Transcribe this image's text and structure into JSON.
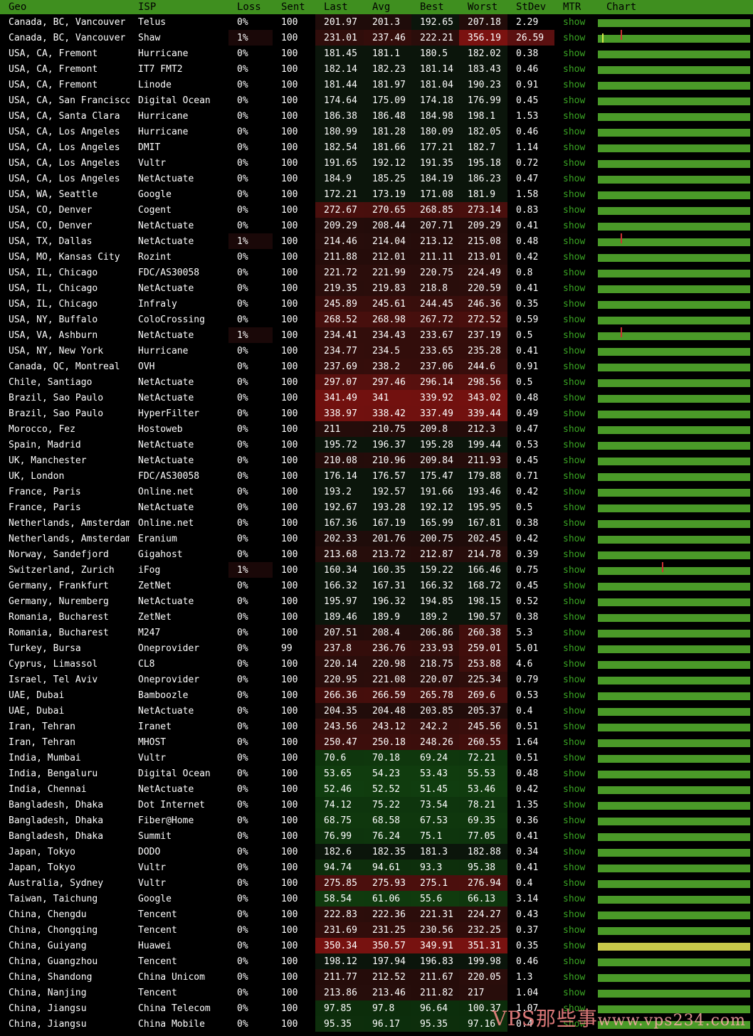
{
  "headers": [
    "Geo",
    "ISP",
    "Loss",
    "Sent",
    "Last",
    "Avg",
    "Best",
    "Worst",
    "StDev",
    "MTR",
    "Chart"
  ],
  "mtr_label": "show",
  "watermark": {
    "main": "VPS那些事",
    "sub": "www.vps234.com"
  },
  "rows": [
    [
      "Canada, BC, Vancouver",
      "Telus",
      "0%",
      "100",
      "201.97",
      "201.3",
      "192.65",
      "207.18",
      "2.29"
    ],
    [
      "Canada, BC, Vancouver",
      "Shaw",
      "1%",
      "100",
      "231.01",
      "237.46",
      "222.21",
      "356.19",
      "26.59"
    ],
    [
      "USA, CA, Fremont",
      "Hurricane",
      "0%",
      "100",
      "181.45",
      "181.1",
      "180.5",
      "182.02",
      "0.38"
    ],
    [
      "USA, CA, Fremont",
      "IT7 FMT2",
      "0%",
      "100",
      "182.14",
      "182.23",
      "181.14",
      "183.43",
      "0.46"
    ],
    [
      "USA, CA, Fremont",
      "Linode",
      "0%",
      "100",
      "181.44",
      "181.97",
      "181.04",
      "190.23",
      "0.91"
    ],
    [
      "USA, CA, San Francisco",
      "Digital Ocean",
      "0%",
      "100",
      "174.64",
      "175.09",
      "174.18",
      "176.99",
      "0.45"
    ],
    [
      "USA, CA, Santa Clara",
      "Hurricane",
      "0%",
      "100",
      "186.38",
      "186.48",
      "184.98",
      "198.1",
      "1.53"
    ],
    [
      "USA, CA, Los Angeles",
      "Hurricane",
      "0%",
      "100",
      "180.99",
      "181.28",
      "180.09",
      "182.05",
      "0.46"
    ],
    [
      "USA, CA, Los Angeles",
      "DMIT",
      "0%",
      "100",
      "182.54",
      "181.66",
      "177.21",
      "182.7",
      "1.14"
    ],
    [
      "USA, CA, Los Angeles",
      "Vultr",
      "0%",
      "100",
      "191.65",
      "192.12",
      "191.35",
      "195.18",
      "0.72"
    ],
    [
      "USA, CA, Los Angeles",
      "NetActuate",
      "0%",
      "100",
      "184.9",
      "185.25",
      "184.19",
      "186.23",
      "0.47"
    ],
    [
      "USA, WA, Seattle",
      "Google",
      "0%",
      "100",
      "172.21",
      "173.19",
      "171.08",
      "181.9",
      "1.58"
    ],
    [
      "USA, CO, Denver",
      "Cogent",
      "0%",
      "100",
      "272.67",
      "270.65",
      "268.85",
      "273.14",
      "0.83"
    ],
    [
      "USA, CO, Denver",
      "NetActuate",
      "0%",
      "100",
      "209.29",
      "208.44",
      "207.71",
      "209.29",
      "0.41"
    ],
    [
      "USA, TX, Dallas",
      "NetActuate",
      "1%",
      "100",
      "214.46",
      "214.04",
      "213.12",
      "215.08",
      "0.48"
    ],
    [
      "USA, MO, Kansas City",
      "Rozint",
      "0%",
      "100",
      "211.88",
      "212.01",
      "211.11",
      "213.01",
      "0.42"
    ],
    [
      "USA, IL, Chicago",
      "FDC/AS30058",
      "0%",
      "100",
      "221.72",
      "221.99",
      "220.75",
      "224.49",
      "0.8"
    ],
    [
      "USA, IL, Chicago",
      "NetActuate",
      "0%",
      "100",
      "219.35",
      "219.83",
      "218.8",
      "220.59",
      "0.41"
    ],
    [
      "USA, IL, Chicago",
      "Infraly",
      "0%",
      "100",
      "245.89",
      "245.61",
      "244.45",
      "246.36",
      "0.35"
    ],
    [
      "USA, NY, Buffalo",
      "ColoCrossing",
      "0%",
      "100",
      "268.52",
      "268.98",
      "267.72",
      "272.52",
      "0.59"
    ],
    [
      "USA, VA, Ashburn",
      "NetActuate",
      "1%",
      "100",
      "234.41",
      "234.43",
      "233.67",
      "237.19",
      "0.5"
    ],
    [
      "USA, NY, New York",
      "Hurricane",
      "0%",
      "100",
      "234.77",
      "234.5",
      "233.65",
      "235.28",
      "0.41"
    ],
    [
      "Canada, QC, Montreal",
      "OVH",
      "0%",
      "100",
      "237.69",
      "238.2",
      "237.06",
      "244.6",
      "0.91"
    ],
    [
      "Chile, Santiago",
      "NetActuate",
      "0%",
      "100",
      "297.07",
      "297.46",
      "296.14",
      "298.56",
      "0.5"
    ],
    [
      "Brazil, Sao Paulo",
      "NetActuate",
      "0%",
      "100",
      "341.49",
      "341",
      "339.92",
      "343.02",
      "0.48"
    ],
    [
      "Brazil, Sao Paulo",
      "HyperFilter",
      "0%",
      "100",
      "338.97",
      "338.42",
      "337.49",
      "339.44",
      "0.49"
    ],
    [
      "Morocco, Fez",
      "Hostoweb",
      "0%",
      "100",
      "211",
      "210.75",
      "209.8",
      "212.3",
      "0.47"
    ],
    [
      "Spain, Madrid",
      "NetActuate",
      "0%",
      "100",
      "195.72",
      "196.37",
      "195.28",
      "199.44",
      "0.53"
    ],
    [
      "UK, Manchester",
      "NetActuate",
      "0%",
      "100",
      "210.08",
      "210.96",
      "209.84",
      "211.93",
      "0.45"
    ],
    [
      "UK, London",
      "FDC/AS30058",
      "0%",
      "100",
      "176.14",
      "176.57",
      "175.47",
      "179.88",
      "0.71"
    ],
    [
      "France, Paris",
      "Online.net",
      "0%",
      "100",
      "193.2",
      "192.57",
      "191.66",
      "193.46",
      "0.42"
    ],
    [
      "France, Paris",
      "NetActuate",
      "0%",
      "100",
      "192.67",
      "193.28",
      "192.12",
      "195.95",
      "0.5"
    ],
    [
      "Netherlands, Amsterdam",
      "Online.net",
      "0%",
      "100",
      "167.36",
      "167.19",
      "165.99",
      "167.81",
      "0.38"
    ],
    [
      "Netherlands, Amsterdam",
      "Eranium",
      "0%",
      "100",
      "202.33",
      "201.76",
      "200.75",
      "202.45",
      "0.42"
    ],
    [
      "Norway, Sandefjord",
      "Gigahost",
      "0%",
      "100",
      "213.68",
      "213.72",
      "212.87",
      "214.78",
      "0.39"
    ],
    [
      "Switzerland, Zurich",
      "iFog",
      "1%",
      "100",
      "160.34",
      "160.35",
      "159.22",
      "166.46",
      "0.75"
    ],
    [
      "Germany, Frankfurt",
      "ZetNet",
      "0%",
      "100",
      "166.32",
      "167.31",
      "166.32",
      "168.72",
      "0.45"
    ],
    [
      "Germany, Nuremberg",
      "NetActuate",
      "0%",
      "100",
      "195.97",
      "196.32",
      "194.85",
      "198.15",
      "0.52"
    ],
    [
      "Romania, Bucharest",
      "ZetNet",
      "0%",
      "100",
      "189.46",
      "189.9",
      "189.2",
      "190.57",
      "0.38"
    ],
    [
      "Romania, Bucharest",
      "M247",
      "0%",
      "100",
      "207.51",
      "208.4",
      "206.86",
      "260.38",
      "5.3"
    ],
    [
      "Turkey, Bursa",
      "Oneprovider",
      "0%",
      "99",
      "237.8",
      "236.76",
      "233.93",
      "259.01",
      "5.01"
    ],
    [
      "Cyprus, Limassol",
      "CL8",
      "0%",
      "100",
      "220.14",
      "220.98",
      "218.75",
      "253.88",
      "4.6"
    ],
    [
      "Israel, Tel Aviv",
      "Oneprovider",
      "0%",
      "100",
      "220.95",
      "221.08",
      "220.07",
      "225.34",
      "0.79"
    ],
    [
      "UAE, Dubai",
      "Bamboozle",
      "0%",
      "100",
      "266.36",
      "266.59",
      "265.78",
      "269.6",
      "0.53"
    ],
    [
      "UAE, Dubai",
      "NetActuate",
      "0%",
      "100",
      "204.35",
      "204.48",
      "203.85",
      "205.37",
      "0.4"
    ],
    [
      "Iran, Tehran",
      "Iranet",
      "0%",
      "100",
      "243.56",
      "243.12",
      "242.2",
      "245.56",
      "0.51"
    ],
    [
      "Iran, Tehran",
      "MHOST",
      "0%",
      "100",
      "250.47",
      "250.18",
      "248.26",
      "260.55",
      "1.64"
    ],
    [
      "India, Mumbai",
      "Vultr",
      "0%",
      "100",
      "70.6",
      "70.18",
      "69.24",
      "72.21",
      "0.51"
    ],
    [
      "India, Bengaluru",
      "Digital Ocean",
      "0%",
      "100",
      "53.65",
      "54.23",
      "53.43",
      "55.53",
      "0.48"
    ],
    [
      "India, Chennai",
      "NetActuate",
      "0%",
      "100",
      "52.46",
      "52.52",
      "51.45",
      "53.46",
      "0.42"
    ],
    [
      "Bangladesh, Dhaka",
      "Dot Internet",
      "0%",
      "100",
      "74.12",
      "75.22",
      "73.54",
      "78.21",
      "1.35"
    ],
    [
      "Bangladesh, Dhaka",
      "Fiber@Home",
      "0%",
      "100",
      "68.75",
      "68.58",
      "67.53",
      "69.35",
      "0.36"
    ],
    [
      "Bangladesh, Dhaka",
      "Summit",
      "0%",
      "100",
      "76.99",
      "76.24",
      "75.1",
      "77.05",
      "0.41"
    ],
    [
      "Japan, Tokyo",
      "DODO",
      "0%",
      "100",
      "182.6",
      "182.35",
      "181.3",
      "182.88",
      "0.34"
    ],
    [
      "Japan, Tokyo",
      "Vultr",
      "0%",
      "100",
      "94.74",
      "94.61",
      "93.3",
      "95.38",
      "0.41"
    ],
    [
      "Australia, Sydney",
      "Vultr",
      "0%",
      "100",
      "275.85",
      "275.93",
      "275.1",
      "276.94",
      "0.4"
    ],
    [
      "Taiwan, Taichung",
      "Google",
      "0%",
      "100",
      "58.54",
      "61.06",
      "55.6",
      "66.13",
      "3.14"
    ],
    [
      "China, Chengdu",
      "Tencent",
      "0%",
      "100",
      "222.83",
      "222.36",
      "221.31",
      "224.27",
      "0.43"
    ],
    [
      "China, Chongqing",
      "Tencent",
      "0%",
      "100",
      "231.69",
      "231.25",
      "230.56",
      "232.25",
      "0.37"
    ],
    [
      "China, Guiyang",
      "Huawei",
      "0%",
      "100",
      "350.34",
      "350.57",
      "349.91",
      "351.31",
      "0.35"
    ],
    [
      "China, Guangzhou",
      "Tencent",
      "0%",
      "100",
      "198.12",
      "197.94",
      "196.83",
      "199.98",
      "0.46"
    ],
    [
      "China, Shandong",
      "China Unicom",
      "0%",
      "100",
      "211.77",
      "212.52",
      "211.67",
      "220.05",
      "1.3"
    ],
    [
      "China, Nanjing",
      "Tencent",
      "0%",
      "100",
      "213.86",
      "213.46",
      "211.82",
      "217",
      "1.04"
    ],
    [
      "China, Jiangsu",
      "China Telecom",
      "0%",
      "100",
      "97.85",
      "97.8",
      "96.64",
      "100.37",
      "1.07"
    ],
    [
      "China, Jiangsu",
      "China Mobile",
      "0%",
      "100",
      "95.35",
      "96.17",
      "95.35",
      "97.16",
      "0.4"
    ]
  ],
  "chart_spikes": {
    "1": [
      0.03,
      0.15
    ],
    "14": [
      0.15
    ],
    "20": [
      0.15
    ],
    "35": [
      0.42
    ]
  },
  "chart_warn_rows": [
    59
  ],
  "colors": {
    "header_bg": "#3f8f1f",
    "bar": "#4a9a28",
    "bar_warn": "#c8c84a",
    "mtr_link": "#3aa523"
  }
}
